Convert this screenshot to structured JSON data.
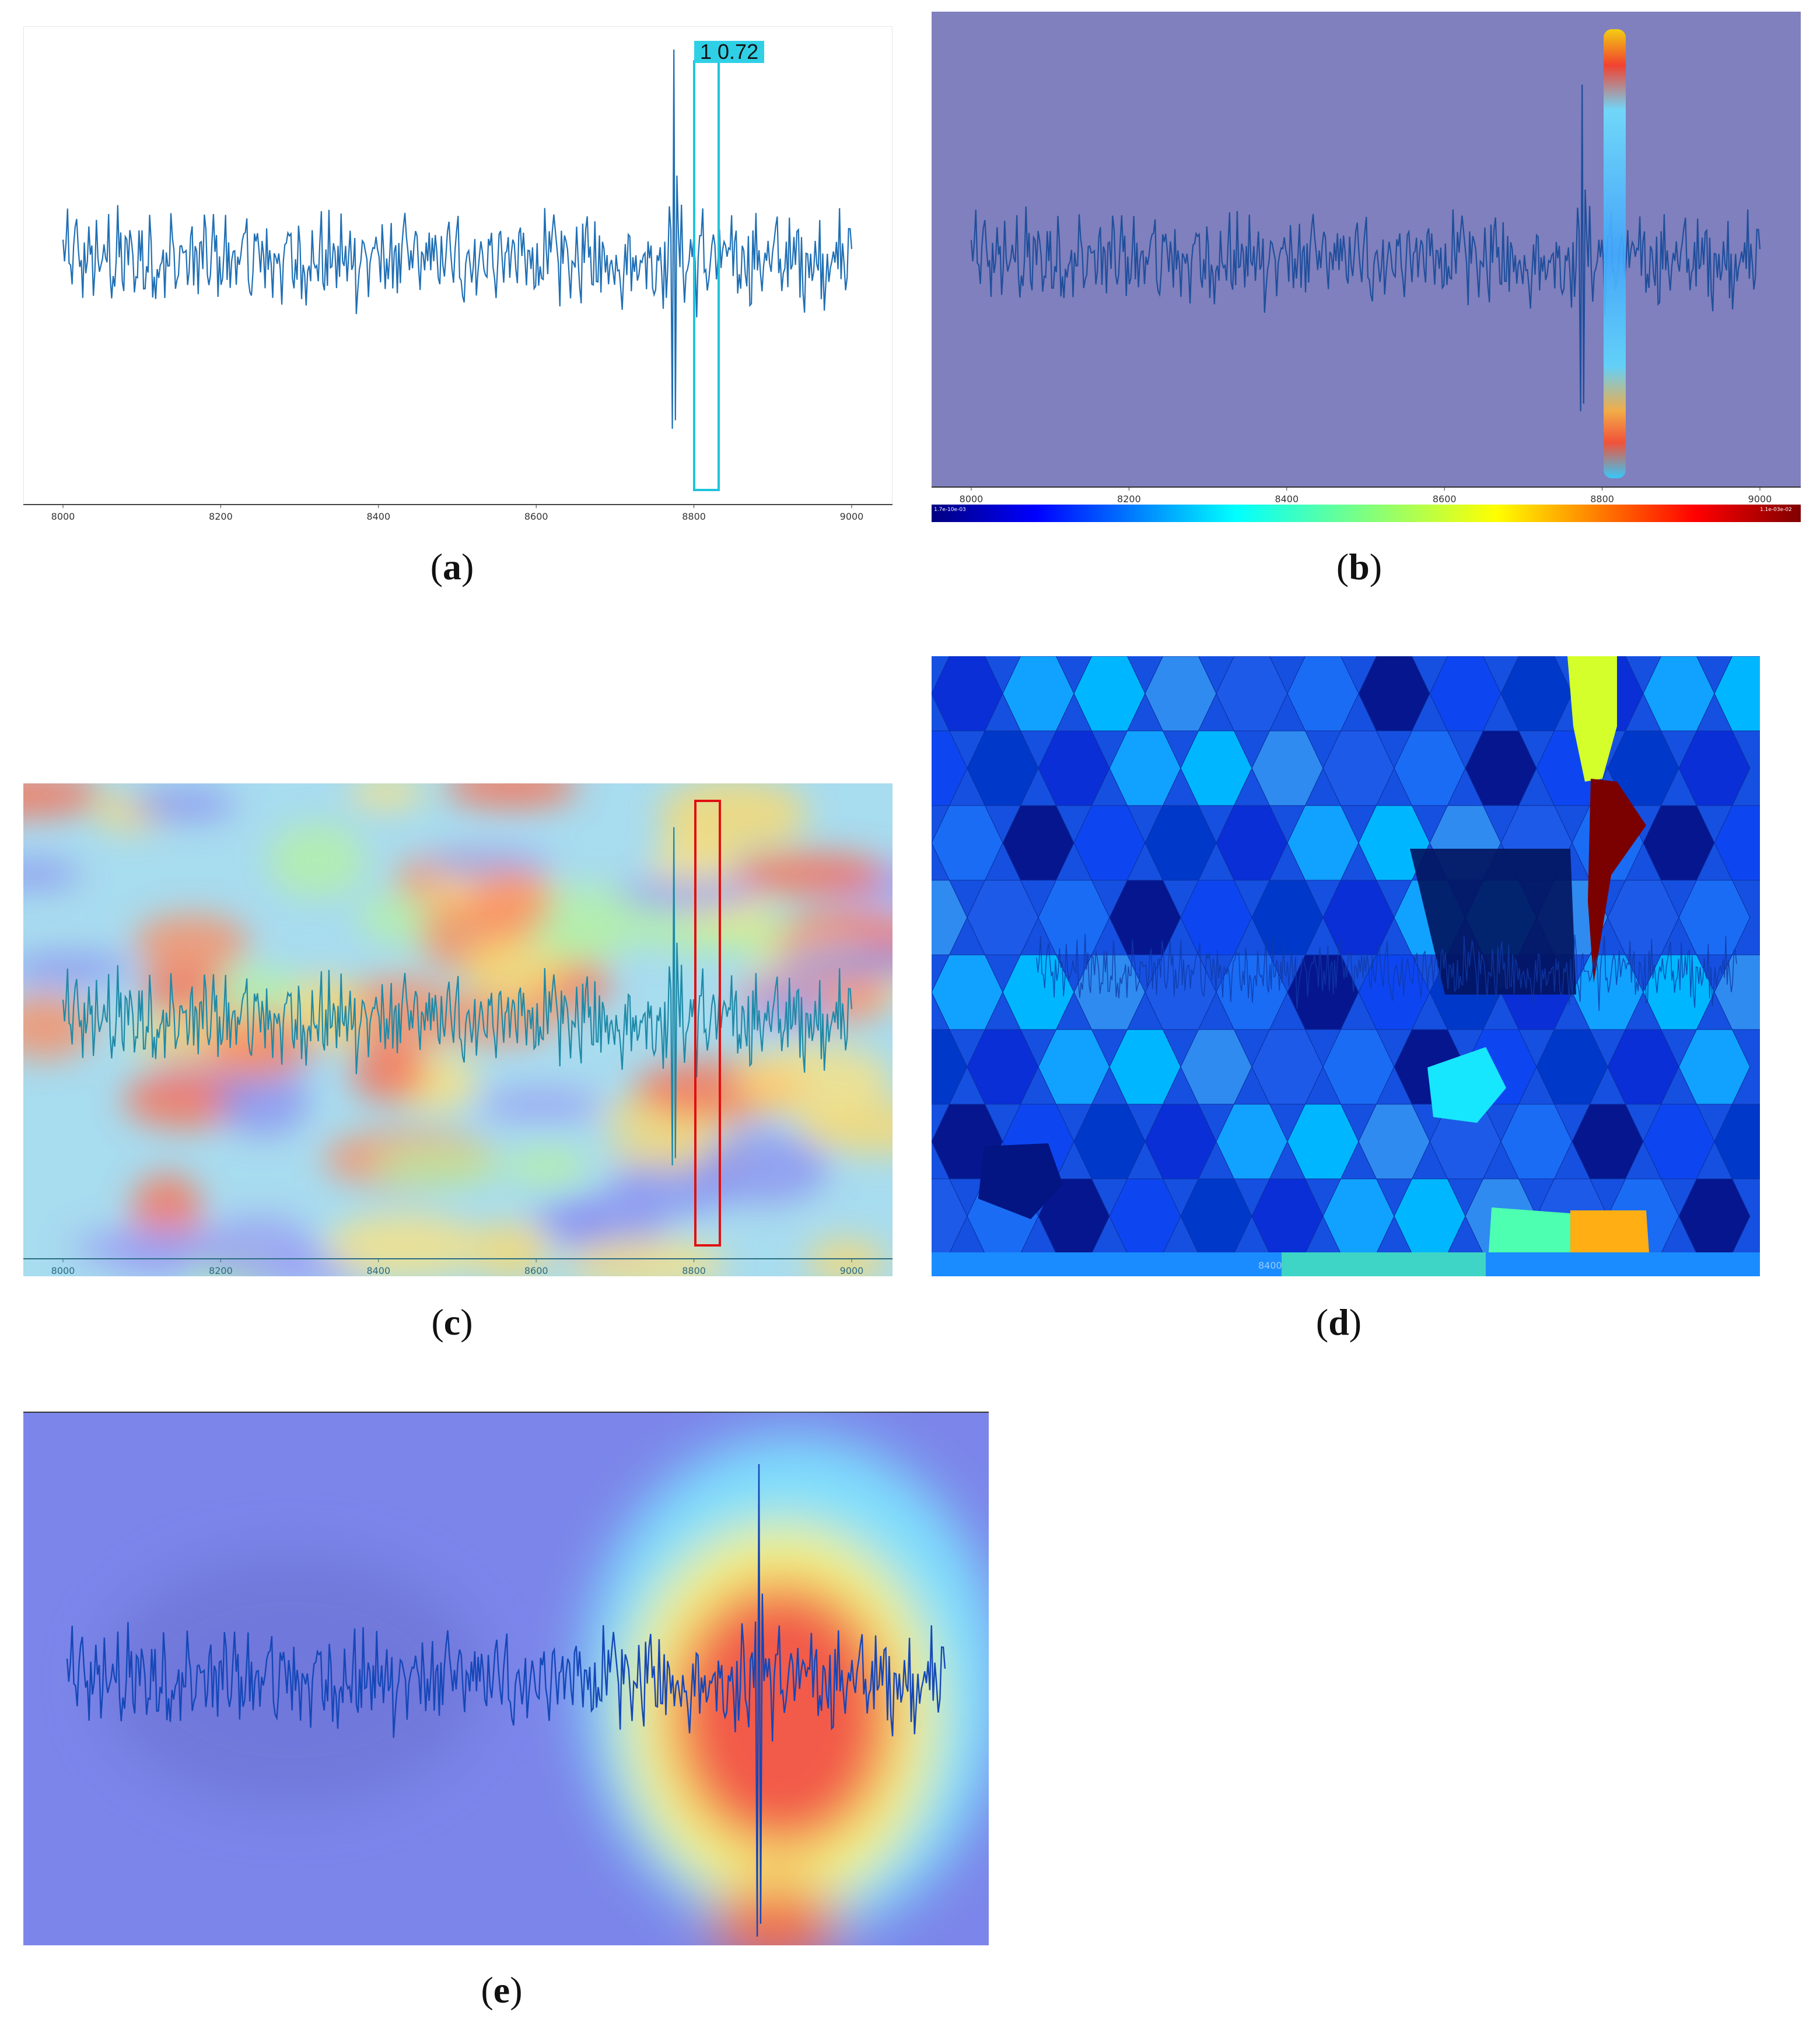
{
  "figure": {
    "captions": [
      "(a)",
      "(b)",
      "(c)",
      "(d)",
      "(e)"
    ],
    "caption_letters": [
      "a",
      "b",
      "c",
      "d",
      "e"
    ]
  },
  "panel_a": {
    "detection_label": "1  0.72",
    "box_color": "#1fc4dc",
    "line_color": "#1f6fb4"
  },
  "panel_b": {
    "overlay_color": "#7f80bd",
    "colorbar_left": "1.7e-10e-03",
    "colorbar_right": "1.1e-03e-02"
  },
  "panel_c": {
    "box_color": "#e01010"
  },
  "panel_d": {
    "axis_tick_visible": "8400"
  },
  "chart_data": [
    {
      "type": "line",
      "title": "",
      "xlabel": "",
      "ylabel": "",
      "xlim": [
        7950,
        9050
      ],
      "x_ticks": [
        "8000",
        "8200",
        "8400",
        "8600",
        "8800",
        "9000"
      ],
      "series": [
        {
          "x_range": [
            8000,
            9000
          ],
          "description": "noisy signal with deep spike near 8810-8830"
        }
      ],
      "annotation": {
        "type": "bounding-box",
        "x_range": [
          8800,
          8830
        ],
        "label": "1  0.72"
      }
    },
    {
      "type": "heatmap",
      "xlim": [
        7950,
        9050
      ],
      "x_ticks": [
        "8000",
        "8200",
        "8400",
        "8600",
        "8800",
        "9000"
      ],
      "highlight_x": [
        8800,
        8830
      ],
      "colorbar": "jet"
    },
    {
      "type": "heatmap",
      "xlim": [
        7950,
        9050
      ],
      "x_ticks": [
        "8000",
        "8200",
        "8400",
        "8600",
        "8800",
        "9000"
      ],
      "annotation": {
        "type": "bounding-box",
        "x_range": [
          8800,
          8830
        ]
      }
    },
    {
      "type": "heatmap",
      "description": "superpixel segmentation (voronoi-like cells) colored by jet scale"
    },
    {
      "type": "heatmap",
      "description": "grad-cam style heatmap with hot region around the spike"
    }
  ]
}
